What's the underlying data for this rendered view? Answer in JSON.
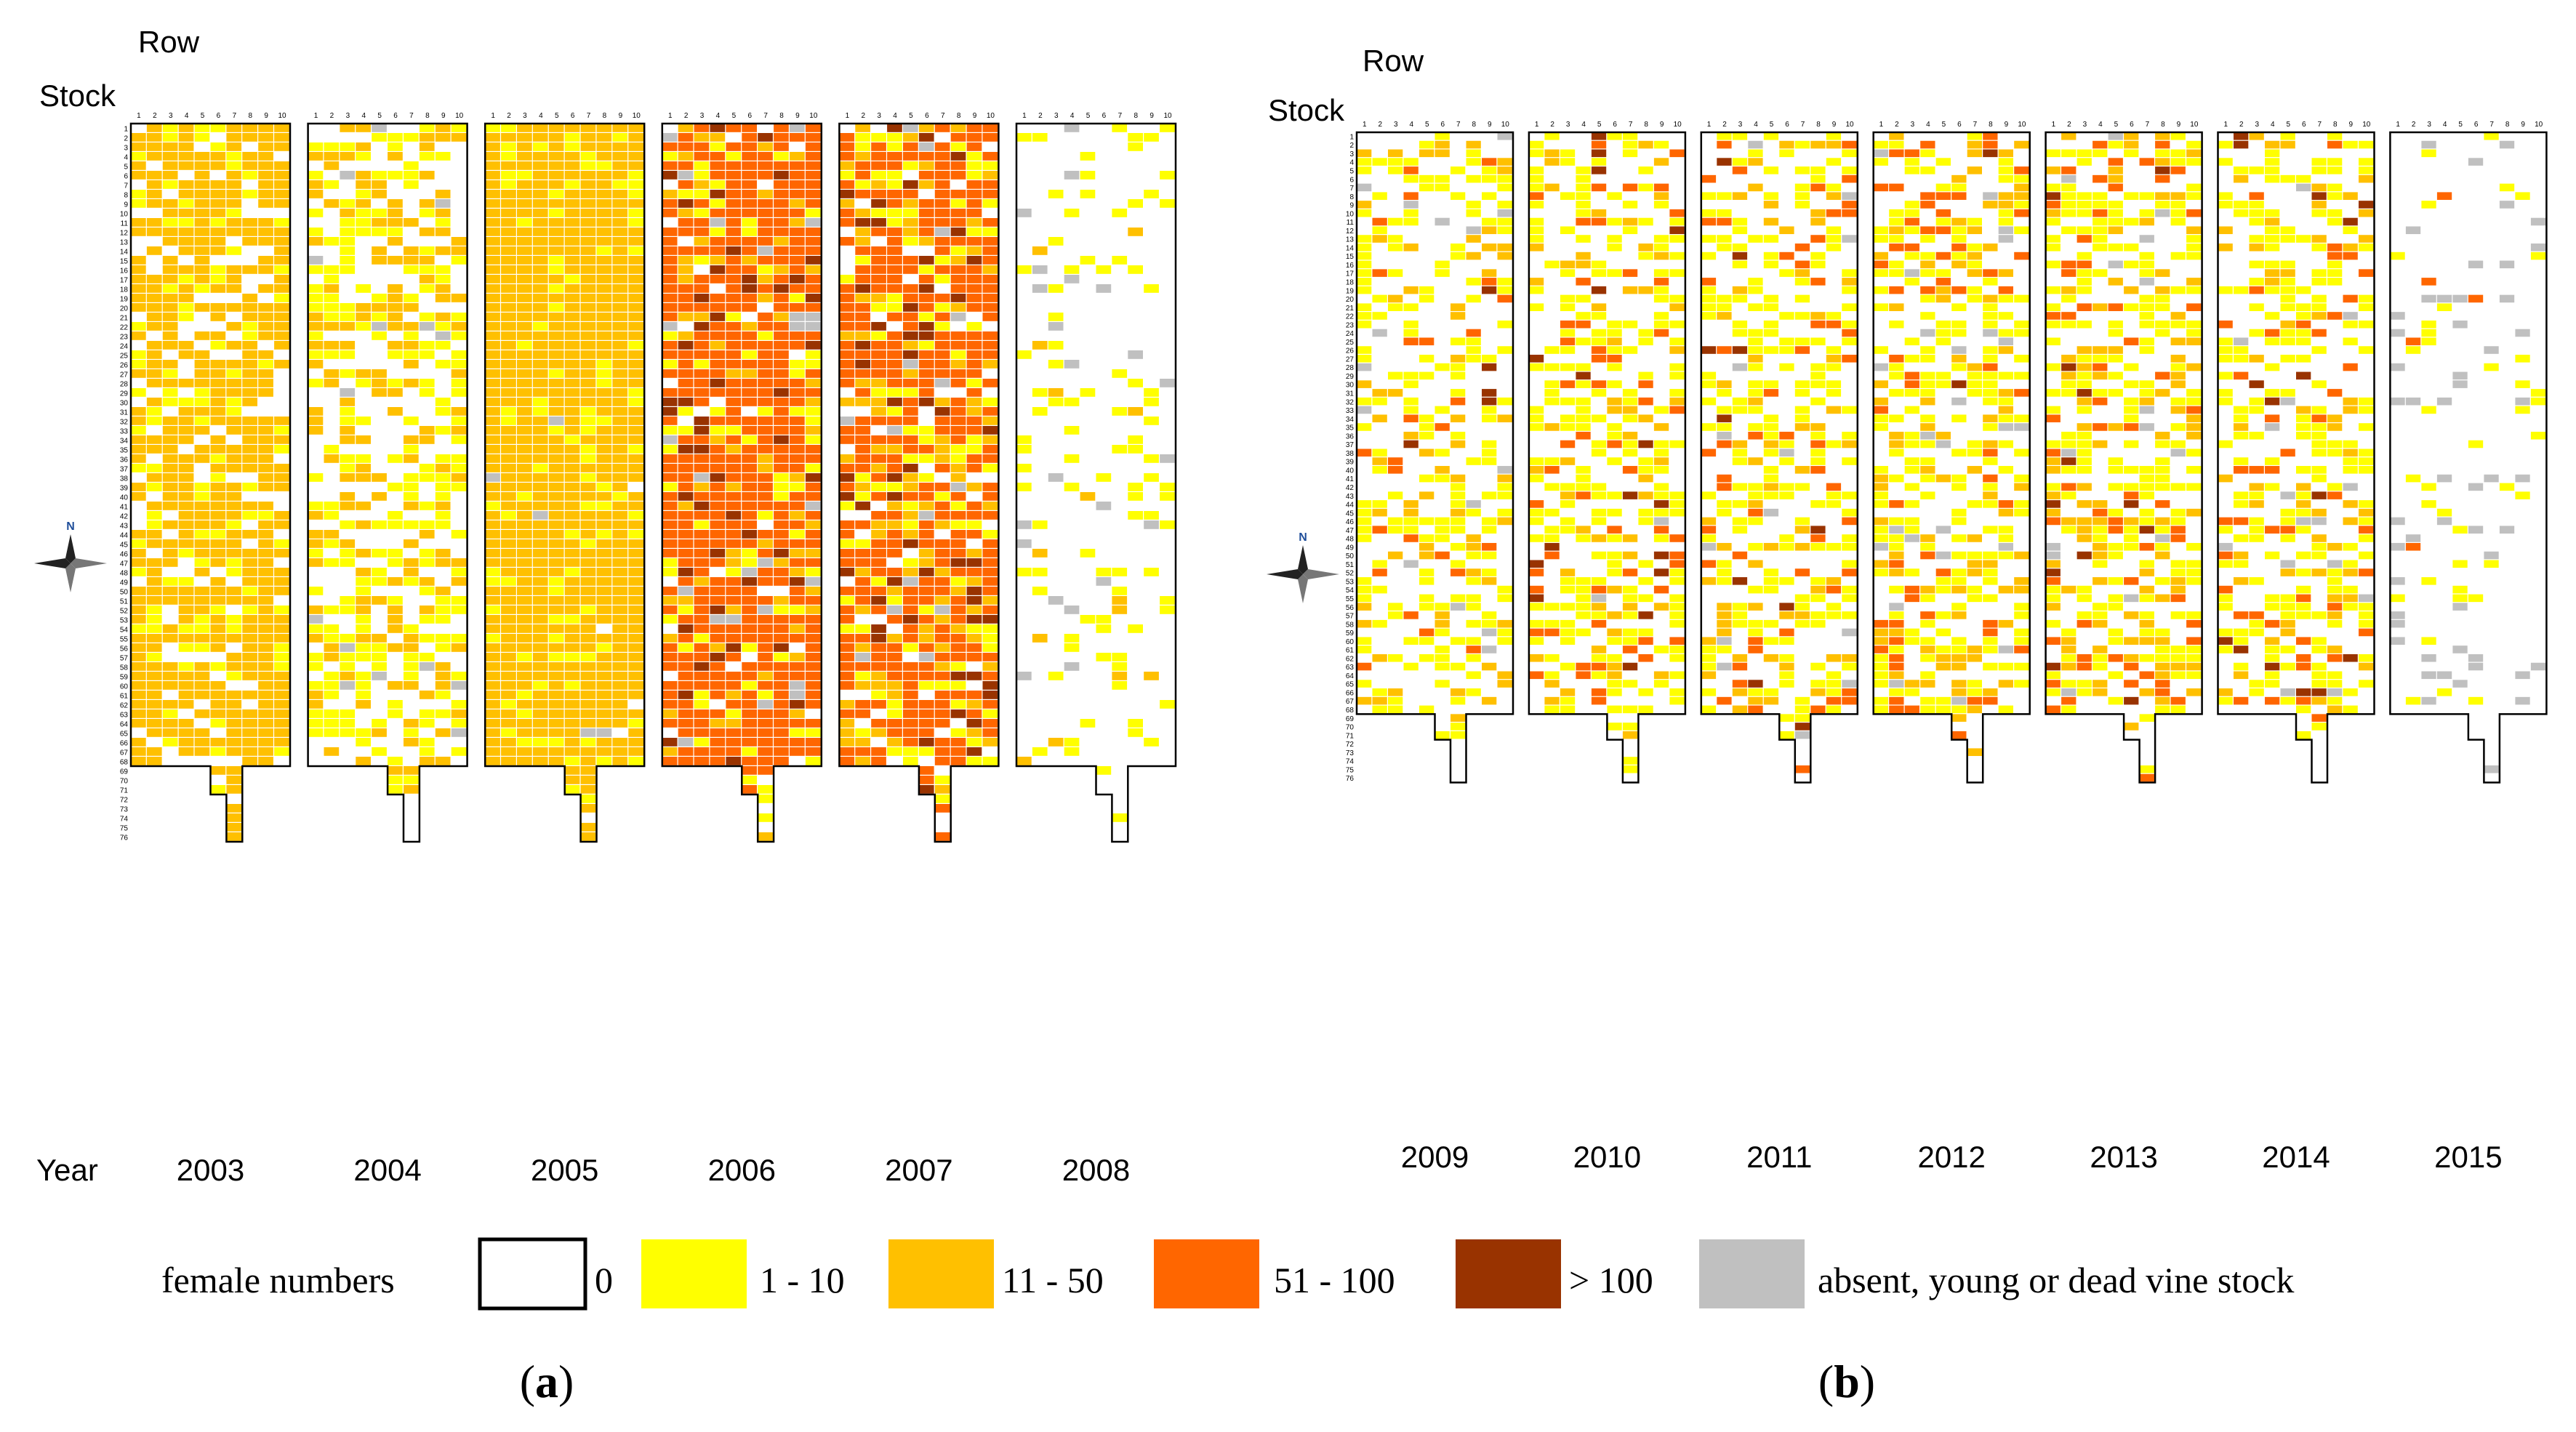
{
  "chart_data": {
    "type": "heatmap",
    "description_variable": "female numbers per vine stock",
    "axis_labels": {
      "row": "Row",
      "stock": "Stock",
      "year": "Year"
    },
    "compass_letter": "N",
    "legend": {
      "title": "female numbers",
      "items": [
        {
          "code": 0,
          "label": "0",
          "color": "#ffffff"
        },
        {
          "code": 1,
          "label": "1 - 10",
          "color": "#ffff00"
        },
        {
          "code": 2,
          "label": "11 - 50",
          "color": "#ffc000"
        },
        {
          "code": 3,
          "label": "51 - 100",
          "color": "#ff6600"
        },
        {
          "code": 4,
          "label": "> 100",
          "color": "#993300"
        },
        {
          "code": 5,
          "label": "absent, young or dead vine stock",
          "color": "#c0c0c0"
        }
      ]
    },
    "grid": {
      "rows_per_year": 10,
      "row_labels": [
        "1",
        "2",
        "3",
        "4",
        "5",
        "6",
        "7",
        "8",
        "9",
        "10"
      ],
      "stock_labels_panel_a": [
        "1",
        "2",
        "3",
        "4",
        "5",
        "6",
        "7",
        "8",
        "9",
        "10",
        "11",
        "12",
        "13",
        "14",
        "15",
        "16",
        "17",
        "18",
        "19",
        "20",
        "21",
        "22",
        "23",
        "24",
        "25",
        "26",
        "27",
        "28",
        "29",
        "30",
        "31",
        "32",
        "33",
        "34",
        "35",
        "36",
        "37",
        "38",
        "39",
        "40",
        "41",
        "42",
        "43",
        "44",
        "45",
        "46",
        "47",
        "48",
        "49",
        "50",
        "51",
        "52",
        "53",
        "54",
        "55",
        "56",
        "57",
        "58",
        "59",
        "60",
        "61",
        "62",
        "63",
        "64",
        "65",
        "66",
        "67",
        "68",
        "69",
        "70",
        "71",
        "72",
        "73",
        "74",
        "75",
        "76"
      ],
      "stock_labels_panel_b": [
        "1",
        "2",
        "3",
        "4",
        "5",
        "6",
        "7",
        "8",
        "9",
        "10",
        "11",
        "12",
        "13",
        "14",
        "15",
        "16",
        "17",
        "18",
        "19",
        "20",
        "21",
        "22",
        "23",
        "24",
        "25",
        "26",
        "27",
        "28",
        "29",
        "30",
        "31",
        "32",
        "33",
        "34",
        "35",
        "36",
        "37",
        "38",
        "39",
        "40",
        "41",
        "42",
        "43",
        "44",
        "45",
        "46",
        "47",
        "48",
        "49",
        "50",
        "51",
        "52",
        "53",
        "54",
        "55",
        "56",
        "57",
        "58",
        "59",
        "60",
        "61",
        "62",
        "63",
        "64",
        "65",
        "66",
        "67",
        "68",
        "69",
        "70",
        "71",
        "72",
        "73",
        "74",
        "75",
        "76"
      ],
      "stocks_full_rows": 68,
      "extra_stocks_rows_6_7": 3,
      "extra_stocks_rows_7_only": 5
    },
    "panels": [
      {
        "label": "a",
        "years": [
          {
            "year": "2003",
            "mix": [
              0.18,
              0.17,
              0.65,
              0.0,
              0.0,
              0.01
            ],
            "seed": 2003
          },
          {
            "year": "2004",
            "mix": [
              0.42,
              0.32,
              0.24,
              0.0,
              0.0,
              0.02
            ],
            "seed": 2004
          },
          {
            "year": "2005",
            "mix": [
              0.01,
              0.14,
              0.84,
              0.0,
              0.0,
              0.01
            ],
            "seed": 2005
          },
          {
            "year": "2006",
            "mix": [
              0.05,
              0.1,
              0.12,
              0.63,
              0.07,
              0.03
            ],
            "seed": 2006
          },
          {
            "year": "2007",
            "mix": [
              0.09,
              0.16,
              0.14,
              0.5,
              0.08,
              0.03
            ],
            "seed": 2007
          },
          {
            "year": "2008",
            "mix": [
              0.8,
              0.15,
              0.02,
              0.0,
              0.0,
              0.03
            ],
            "seed": 2008
          }
        ]
      },
      {
        "label": "b",
        "years": [
          {
            "year": "2009",
            "mix": [
              0.56,
              0.28,
              0.08,
              0.05,
              0.01,
              0.02
            ],
            "seed": 2009
          },
          {
            "year": "2010",
            "mix": [
              0.47,
              0.32,
              0.1,
              0.08,
              0.02,
              0.01
            ],
            "seed": 2010
          },
          {
            "year": "2011",
            "mix": [
              0.44,
              0.33,
              0.11,
              0.09,
              0.02,
              0.01
            ],
            "seed": 2011
          },
          {
            "year": "2012",
            "mix": [
              0.47,
              0.3,
              0.11,
              0.08,
              0.01,
              0.03
            ],
            "seed": 2012
          },
          {
            "year": "2013",
            "mix": [
              0.44,
              0.3,
              0.13,
              0.09,
              0.02,
              0.02
            ],
            "seed": 2013
          },
          {
            "year": "2014",
            "mix": [
              0.54,
              0.26,
              0.08,
              0.06,
              0.02,
              0.04
            ],
            "seed": 2014
          },
          {
            "year": "2015",
            "mix": [
              0.87,
              0.05,
              0.0,
              0.01,
              0.0,
              0.07
            ],
            "seed": 2015
          }
        ]
      }
    ]
  }
}
